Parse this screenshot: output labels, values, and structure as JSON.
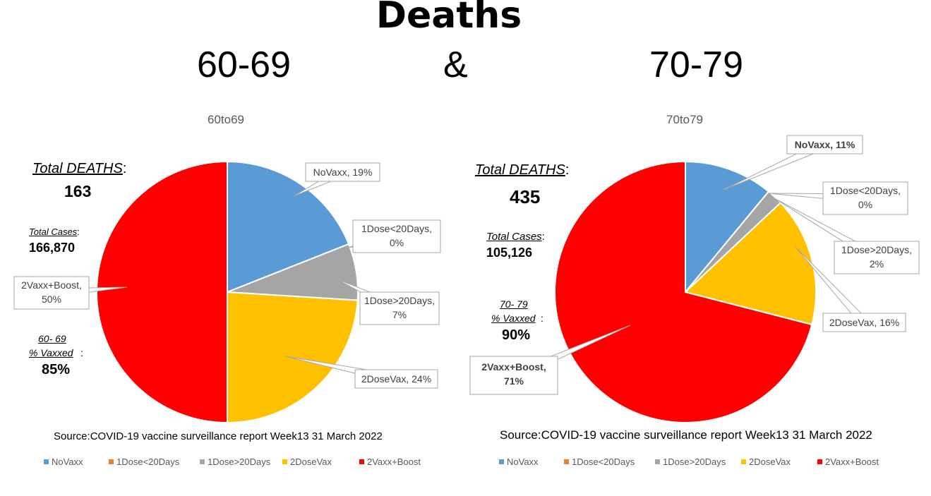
{
  "title": "Deaths",
  "header": {
    "left": "60-69",
    "amp": "&",
    "right": "70-79"
  },
  "colors": {
    "NoVaxx": "#5b9bd5",
    "1Dose<20Days": "#ed7d31",
    "1Dose>20Days": "#a5a5a5",
    "2DoseVax": "#ffc000",
    "2Vaxx+Boost": "#ff0000"
  },
  "chart_data": [
    {
      "type": "pie",
      "title": "60to69",
      "categories": [
        "NoVaxx",
        "1Dose<20Days",
        "1Dose>20Days",
        "2DoseVax",
        "2Vaxx+Boost"
      ],
      "values": [
        19,
        0,
        7,
        24,
        50
      ],
      "data_labels": [
        "NoVaxx, 19%",
        "1Dose<20Days, 0%",
        "1Dose>20Days, 7%",
        "2DoseVax, 24%",
        "2Vaxx+Boost, 50%"
      ],
      "legend": "bottom"
    },
    {
      "type": "pie",
      "title": "70to79",
      "categories": [
        "NoVaxx",
        "1Dose<20Days",
        "1Dose>20Days",
        "2DoseVax",
        "2Vaxx+Boost"
      ],
      "values": [
        11,
        0,
        2,
        16,
        71
      ],
      "data_labels": [
        "NoVaxx, 11%",
        "1Dose<20Days, 0%",
        "1Dose>20Days, 2%",
        "2DoseVax, 16%",
        "2Vaxx+Boost, 71%"
      ],
      "legend": "bottom"
    }
  ],
  "left_panel": {
    "deaths_heading": "Total DEATHS",
    "colon": ":",
    "deaths_value": "163",
    "cases_heading": "Total Cases",
    "cases_value": "166,870",
    "vaxxed_heading_1": "60- 69",
    "vaxxed_heading_2": "% Vaxxed",
    "vaxxed_value": "85%",
    "source": "Source:COVID-19 vaccine surveillance report Week13  31 March 2022"
  },
  "right_panel": {
    "deaths_heading": "Total DEATHS",
    "colon": ":",
    "deaths_value": "435",
    "cases_heading": "Total Cases",
    "cases_value": "105,126",
    "vaxxed_heading_1": "70- 79",
    "vaxxed_heading_2": "% Vaxxed",
    "vaxxed_value": "90%",
    "source": "Source:COVID-19 vaccine surveillance report Week13  31 March 2022"
  }
}
